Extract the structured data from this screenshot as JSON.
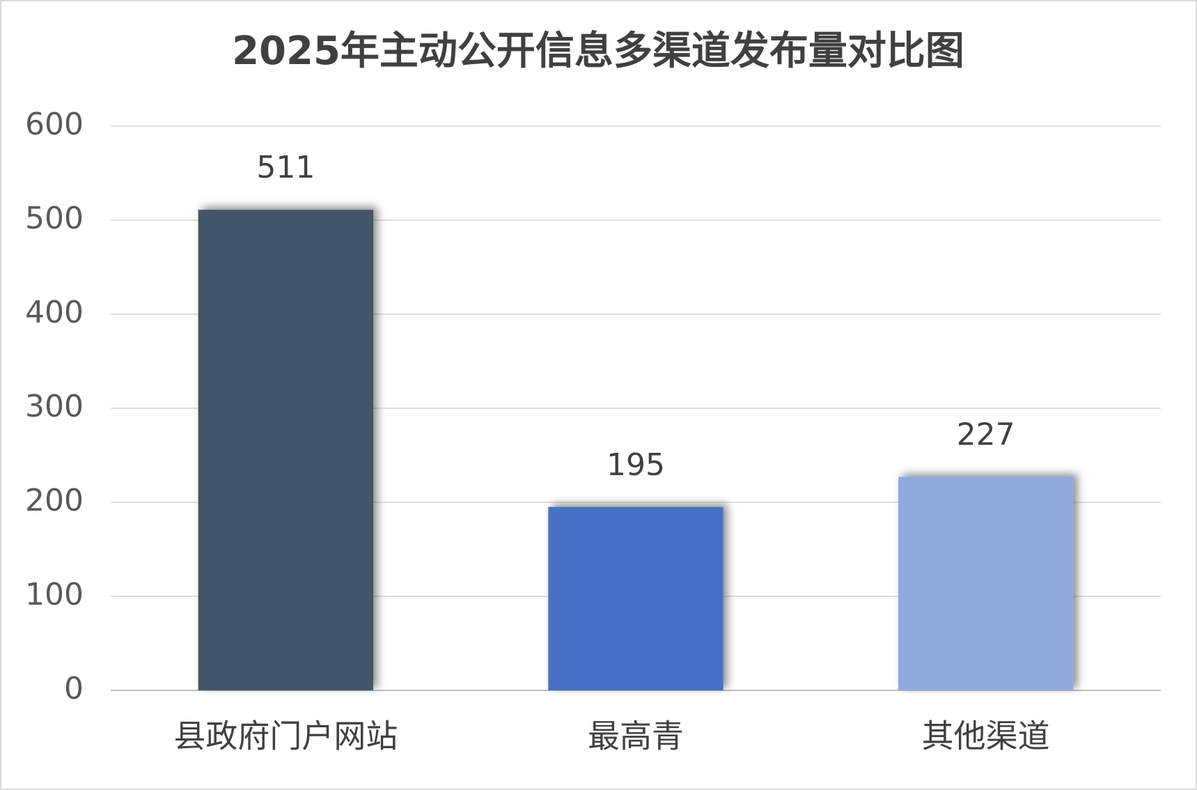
{
  "chart_data": {
    "type": "bar",
    "title": "2025年主动公开信息多渠道发布量对比图",
    "categories": [
      "县政府门户网站",
      "最高青",
      "其他渠道"
    ],
    "values": [
      511,
      195,
      227
    ],
    "colors": [
      "#44546a",
      "#4472c4",
      "#8faadc"
    ],
    "ylim": [
      0,
      600
    ],
    "yticks": [
      0,
      100,
      200,
      300,
      400,
      500,
      600
    ],
    "grid": true
  }
}
